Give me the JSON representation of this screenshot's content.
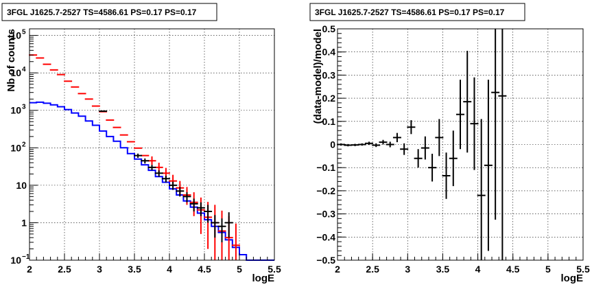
{
  "chart_data": [
    {
      "type": "line",
      "title": "3FGL J1625.7-2527 TS=4586.61 PS=0.17 PS=0.17",
      "xlabel": "logE",
      "ylabel": "Nb of counts",
      "xlim": [
        2,
        5.5
      ],
      "ylim": [
        0.1,
        150000
      ],
      "yscale": "log",
      "grid": true,
      "x_ticks": [
        "2",
        "2.5",
        "3",
        "3.5",
        "4",
        "4.5",
        "5",
        "5.5"
      ],
      "y_ticks": [
        {
          "value": 0.1,
          "label": "10",
          "exp": "−1"
        },
        {
          "value": 1,
          "label": "1",
          "exp": ""
        },
        {
          "value": 10,
          "label": "10",
          "exp": ""
        },
        {
          "value": 100,
          "label": "10",
          "exp": "2"
        },
        {
          "value": 1000,
          "label": "10",
          "exp": "3"
        },
        {
          "value": 10000,
          "label": "10",
          "exp": "4"
        },
        {
          "value": 100000,
          "label": "10",
          "exp": "5"
        }
      ],
      "series": [
        {
          "color": "#0000ff",
          "style": "step",
          "bin_edges": [
            2.0,
            2.1,
            2.2,
            2.3,
            2.4,
            2.5,
            2.6,
            2.7,
            2.8,
            2.9,
            3.0,
            3.1,
            3.2,
            3.3,
            3.4,
            3.5,
            3.6,
            3.7,
            3.8,
            3.9,
            4.0,
            4.1,
            4.2,
            4.3,
            4.4,
            4.5,
            4.6,
            4.7,
            4.8,
            4.9,
            5.0,
            5.1,
            5.2,
            5.3,
            5.4,
            5.5
          ],
          "values": [
            1600,
            1650,
            1550,
            1400,
            1250,
            1050,
            850,
            700,
            520,
            400,
            280,
            200,
            150,
            100,
            70,
            50,
            35,
            25,
            17,
            12,
            8,
            5.5,
            3.8,
            2.6,
            1.8,
            1.2,
            0.8,
            0.55,
            0.35,
            0.22,
            0.14,
            0.1,
            0.1,
            0.1,
            0.1
          ]
        },
        {
          "color": "#ff0000",
          "style": "errorbar",
          "x": [
            2.05,
            2.15,
            2.25,
            2.35,
            2.45,
            2.55,
            2.65,
            2.75,
            2.85,
            2.95,
            3.05,
            3.15,
            3.25,
            3.35,
            3.45,
            3.55,
            3.65,
            3.75,
            3.85,
            3.95,
            4.05,
            4.15,
            4.25,
            4.35,
            4.45,
            4.55,
            4.65,
            4.75,
            4.85,
            4.95
          ],
          "y": [
            30000,
            25000,
            17000,
            12000,
            9000,
            6000,
            4200,
            2800,
            2000,
            1300,
            920,
            550,
            350,
            220,
            145,
            98,
            62,
            45,
            30,
            21,
            13,
            8.5,
            5.5,
            3.5,
            2.2,
            1.4,
            1.0,
            0.6,
            0.4,
            0.25
          ],
          "y_err_low": [
            0,
            0,
            0,
            0,
            0,
            0,
            0,
            0,
            0,
            0,
            0,
            0,
            0,
            0,
            0,
            0,
            0,
            10,
            8,
            6,
            4,
            3,
            2.5,
            2,
            1.7,
            1.2,
            0.9,
            0.55,
            0.38,
            0.24
          ],
          "y_err_high": [
            0,
            0,
            0,
            0,
            0,
            0,
            0,
            0,
            0,
            0,
            0,
            0,
            0,
            0,
            0,
            0,
            0,
            14,
            10,
            8,
            6,
            4.5,
            3.5,
            3,
            2.5,
            2.2,
            2,
            1.5,
            1.1,
            0.7
          ]
        },
        {
          "color": "#000000",
          "style": "errorbar",
          "x": [
            3.05,
            3.55,
            3.65,
            3.75,
            3.85,
            3.95,
            4.05,
            4.15,
            4.25,
            4.35,
            4.45,
            4.55,
            4.65,
            4.75,
            4.85
          ],
          "y": [
            950,
            62,
            45,
            30,
            21,
            15,
            10,
            7,
            5,
            3.2,
            2.5,
            2,
            1,
            0.8,
            1
          ],
          "y_err_low": [
            30,
            8,
            7,
            5,
            4,
            3,
            2.5,
            2,
            1.5,
            1.2,
            1,
            1,
            0.6,
            0.5,
            0.6
          ],
          "y_err_high": [
            30,
            8,
            7,
            5,
            4,
            3,
            2.5,
            2,
            1.5,
            1.2,
            1,
            1,
            0.6,
            0.5,
            0.9
          ]
        }
      ]
    },
    {
      "type": "scatter",
      "title": "3FGL J1625.7-2527 TS=4586.61 PS=0.17 PS=0.17",
      "xlabel": "logE",
      "ylabel": "(data-model)/model",
      "xlim": [
        2,
        5.5
      ],
      "ylim": [
        -0.5,
        0.5
      ],
      "grid": true,
      "x_ticks": [
        "2",
        "2.5",
        "3",
        "3.5",
        "4",
        "4.5",
        "5",
        "5.5"
      ],
      "y_ticks": [
        "−0.5",
        "−0.4",
        "−0.3",
        "−0.2",
        "−0.1",
        "0",
        "0.1",
        "0.2",
        "0.3",
        "0.4",
        "0.5"
      ],
      "series": [
        {
          "color": "#000000",
          "style": "errorbar",
          "x": [
            2.05,
            2.15,
            2.25,
            2.35,
            2.45,
            2.55,
            2.65,
            2.75,
            2.85,
            2.95,
            3.05,
            3.15,
            3.25,
            3.35,
            3.45,
            3.55,
            3.65,
            3.75,
            3.85,
            3.95,
            4.05,
            4.15,
            4.25,
            4.35
          ],
          "y": [
            0.0,
            -0.003,
            -0.002,
            0.0,
            0.005,
            -0.003,
            0.01,
            0.0,
            0.03,
            -0.02,
            0.075,
            -0.06,
            -0.015,
            -0.1,
            0.03,
            -0.135,
            -0.06,
            0.13,
            0.185,
            0.09,
            -0.22,
            -0.09,
            0.225,
            0.21
          ],
          "y_err": [
            0.005,
            0.005,
            0.005,
            0.005,
            0.007,
            0.008,
            0.01,
            0.012,
            0.02,
            0.025,
            0.03,
            0.04,
            0.05,
            0.06,
            0.08,
            0.1,
            0.12,
            0.15,
            0.22,
            0.2,
            0.33,
            0.37,
            0.55,
            0.72
          ]
        }
      ]
    }
  ]
}
